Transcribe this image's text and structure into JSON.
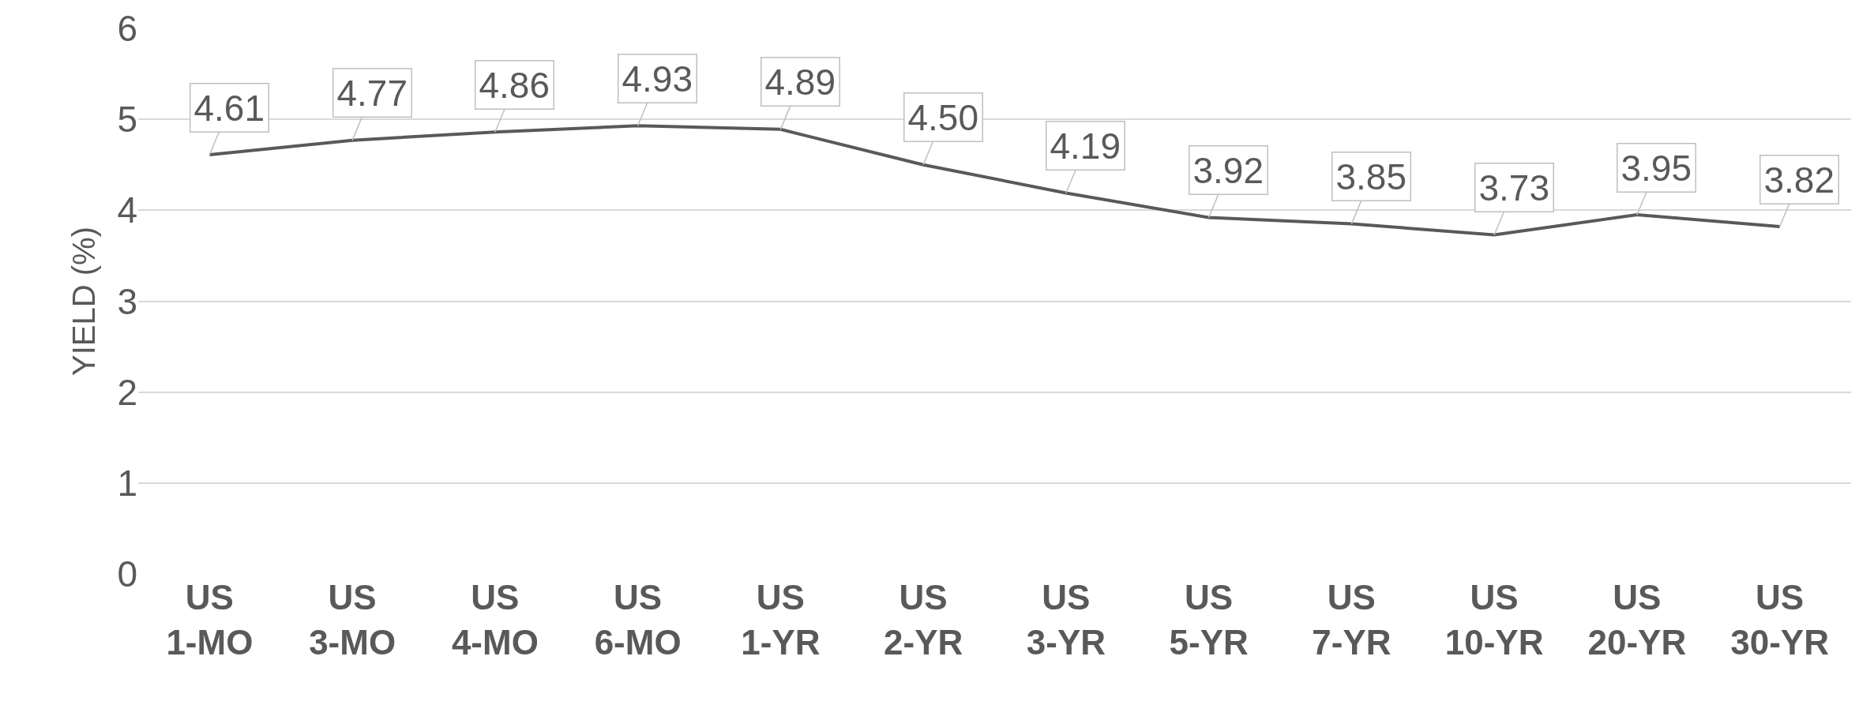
{
  "chart_data": {
    "type": "line",
    "ylabel": "YIELD (%)",
    "categories": [
      "US\n1-MO",
      "US\n3-MO",
      "US\n4-MO",
      "US\n6-MO",
      "US\n1-YR",
      "US\n2-YR",
      "US\n3-YR",
      "US\n5-YR",
      "US\n7-YR",
      "US\n10-YR",
      "US\n20-YR",
      "US\n30-YR"
    ],
    "series": [
      {
        "color": "#595959",
        "values": [
          4.61,
          4.77,
          4.86,
          4.93,
          4.89,
          4.5,
          4.19,
          3.92,
          3.85,
          3.73,
          3.95,
          3.82
        ],
        "value_labels": [
          "4.61",
          "4.77",
          "4.86",
          "4.93",
          "4.89",
          "4.50",
          "4.19",
          "3.92",
          "3.85",
          "3.73",
          "3.95",
          "3.82"
        ]
      }
    ],
    "ylim": [
      0,
      6
    ],
    "yticks": [
      0,
      1,
      2,
      3,
      4,
      5,
      6
    ],
    "grid": "y",
    "legend": false,
    "marker": "none",
    "line_style": "solid"
  }
}
